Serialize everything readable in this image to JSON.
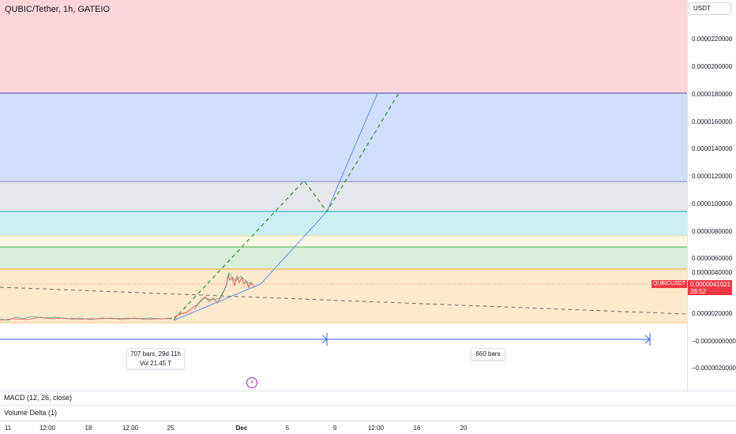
{
  "header": {
    "symbol_title": "QUBIC/Tether, 1h, GATEIO"
  },
  "price_axis": {
    "currency": "USDT",
    "ticks": [
      "0.0000220000",
      "0.0000200000",
      "0.0000180000",
      "0.0000160000",
      "0.0000140000",
      "0.0000120000",
      "0.0000100000",
      "0.0000080000",
      "0.0000060000",
      "0.0000040000",
      "0.0000020000",
      "−0.0000000000",
      "−0.0000020000"
    ]
  },
  "last_price": {
    "symbol": "QUBICUSDT",
    "price": "0.0000041021",
    "countdown": "28:52"
  },
  "measure": {
    "left": {
      "bars_time": "707 bars, 29d 11h",
      "volume": "Vol 21.45 T"
    },
    "right": {
      "bars": "660 bars"
    }
  },
  "indicators": {
    "macd": "MACD (12, 26, close)",
    "volume_delta": "Volume Delta (1)"
  },
  "time_axis": {
    "ticks": [
      "11",
      "12:00",
      "18",
      "12:00",
      "25",
      "Dec",
      "5",
      "9",
      "12:00",
      "16",
      "20"
    ]
  },
  "icons": {
    "flash": "lightning-icon",
    "arrow": "arrow-right-icon"
  },
  "colors": {
    "zone_red": "#fdd6da",
    "zone_blue": "#cfdefb",
    "zone_gray": "#e6e7ea",
    "zone_cyan": "#cdeff3",
    "zone_yellow": "#fff8e4",
    "zone_green": "#d8eedc",
    "zone_orange": "#fde9cc",
    "projection_green": "#43a047",
    "trend_blue": "#5b8def",
    "last_price_red": "#f23645"
  }
}
